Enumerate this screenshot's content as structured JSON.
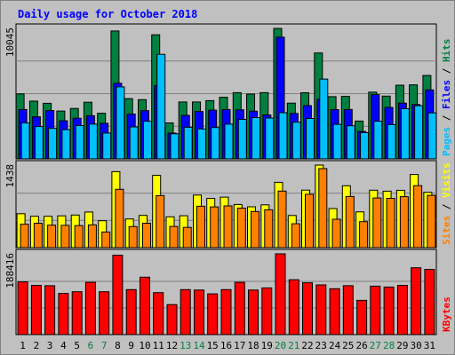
{
  "chart_data": {
    "type": "bar",
    "title": "Daily usage for October 2018",
    "days": [
      "1",
      "2",
      "3",
      "4",
      "5",
      "6",
      "7",
      "8",
      "9",
      "10",
      "11",
      "12",
      "13",
      "14",
      "15",
      "16",
      "17",
      "18",
      "19",
      "20",
      "21",
      "22",
      "23",
      "24",
      "25",
      "26",
      "27",
      "28",
      "29",
      "30",
      "31"
    ],
    "weekend_days": [
      "6",
      "7",
      "13",
      "14",
      "20",
      "21",
      "27",
      "28"
    ],
    "panels": [
      {
        "id": "top",
        "ymax_label": "10045",
        "ymax": 10045,
        "legend": [
          {
            "text": "Pages",
            "color": "#00bfff"
          },
          {
            "text": " / ",
            "color": "#000000"
          },
          {
            "text": "Files",
            "color": "#0000ff"
          },
          {
            "text": " / ",
            "color": "#000000"
          },
          {
            "text": "Hits",
            "color": "#008040"
          }
        ],
        "series": [
          {
            "name": "Hits",
            "color": "#008040",
            "values": [
              5000,
              4450,
              4280,
              3680,
              3880,
              4360,
              3510,
              9850,
              4640,
              4560,
              9550,
              2770,
              4380,
              4380,
              4480,
              4740,
              5100,
              4990,
              5100,
              10045,
              4290,
              5090,
              8150,
              4790,
              4810,
              2910,
              5140,
              4830,
              5670,
              5700,
              6420
            ]
          },
          {
            "name": "Files",
            "color": "#0000ff",
            "values": [
              3800,
              3240,
              3720,
              2930,
              3130,
              3320,
              2740,
              5820,
              3450,
              3710,
              5640,
              1990,
              3350,
              3650,
              3750,
              3800,
              3780,
              3670,
              3380,
              9370,
              3500,
              4100,
              4580,
              3790,
              3800,
              2110,
              4950,
              3960,
              4290,
              4180,
              5310
            ]
          },
          {
            "name": "Pages",
            "color": "#00bfff",
            "values": [
              2770,
              2490,
              2350,
              2250,
              2560,
              2680,
              1990,
              5540,
              2460,
              2890,
              8050,
              1930,
              2430,
              2300,
              2410,
              2670,
              3040,
              3180,
              3140,
              3550,
              2820,
              3110,
              6140,
              2660,
              2550,
              2020,
              2900,
              2640,
              3860,
              4090,
              3540
            ]
          }
        ]
      },
      {
        "id": "middle",
        "ymax_label": "1438",
        "ymax": 1438,
        "legend": [
          {
            "text": "Sites",
            "color": "#ff8000"
          },
          {
            "text": " / ",
            "color": "#000000"
          },
          {
            "text": "Visits",
            "color": "#ffff00"
          }
        ],
        "series": [
          {
            "name": "Visits",
            "color": "#ffff00",
            "values": [
              591,
              546,
              546,
              553,
              568,
              620,
              468,
              1324,
              499,
              561,
              1258,
              536,
              555,
              915,
              856,
              880,
              752,
              711,
              746,
              1138,
              559,
              1002,
              1438,
              681,
              1077,
              623,
              1000,
              983,
              999,
              1274,
              963
            ]
          },
          {
            "name": "Sites",
            "color": "#ff8000",
            "values": [
              408,
              425,
              391,
              388,
              383,
              396,
              272,
              1016,
              366,
              425,
              906,
              368,
              352,
              720,
              710,
              727,
              688,
              629,
              659,
              985,
              416,
              929,
              1376,
              495,
              891,
              453,
              865,
              858,
              887,
              1080,
              910
            ]
          }
        ]
      },
      {
        "id": "bottom",
        "ymax_label": "188416",
        "ymax": 188416,
        "legend": [
          {
            "text": "KBytes",
            "color": "#ff0000"
          }
        ],
        "series": [
          {
            "name": "KBytes",
            "color": "#ff0000",
            "values": [
              123000,
              115000,
              114000,
              96000,
              100000,
              122000,
              100000,
              185000,
              105000,
              134000,
              98000,
              70000,
              105000,
              104000,
              95000,
              105000,
              122000,
              104000,
              109000,
              188416,
              128000,
              121000,
              116000,
              107000,
              114000,
              80000,
              113000,
              111000,
              115000,
              156000,
              152000
            ]
          }
        ]
      }
    ],
    "grid": true,
    "colors": {
      "background": "#c0c0c0",
      "plot_border": "#000000",
      "grid": "#808080",
      "title": "#0000ff",
      "weekday_label": "#000000",
      "weekend_label": "#008040"
    }
  }
}
